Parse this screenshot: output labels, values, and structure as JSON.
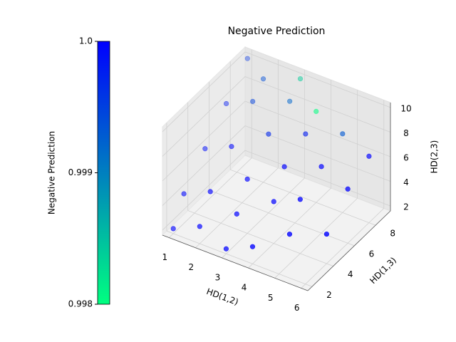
{
  "chart_data": {
    "type": "scatter3d",
    "title": "Negative Prediction",
    "xlabel": "HD(1,2)",
    "ylabel": "HD(1,3)",
    "zlabel": "HD(2,3)",
    "x": [
      1,
      1,
      1,
      1,
      1,
      2,
      2,
      2,
      2,
      2,
      3,
      3,
      3,
      3,
      3,
      3,
      4,
      4,
      4,
      4,
      4,
      5,
      5,
      5,
      5,
      6,
      6,
      6
    ],
    "y": [
      2,
      3,
      5,
      7,
      9,
      2,
      3,
      5,
      7,
      8,
      2,
      3,
      4,
      6,
      8,
      9,
      2,
      4,
      5,
      7,
      8,
      3,
      4,
      6,
      8,
      4,
      6,
      8
    ],
    "z": [
      2,
      4,
      6,
      8,
      10,
      3,
      5,
      7,
      9,
      10,
      2,
      4,
      6,
      8,
      9,
      10,
      3,
      5,
      7,
      8,
      9,
      4,
      6,
      7,
      8,
      4,
      6,
      7
    ],
    "c": [
      1.0,
      0.99995,
      0.9999,
      0.9998,
      0.9996,
      1.0,
      1.0,
      0.99995,
      0.9995,
      0.9994,
      1.0,
      1.0,
      1.0,
      0.9997,
      0.9992,
      0.9984,
      1.0,
      1.0,
      1.0,
      0.9998,
      0.998,
      1.0,
      1.0,
      1.0,
      0.9993,
      1.0,
      1.0,
      1.0
    ],
    "xlim": [
      0.75,
      6.25
    ],
    "ylim": [
      1.6,
      9.4
    ],
    "zlim": [
      1.6,
      10.4
    ],
    "xticks": [
      1,
      2,
      3,
      4,
      5,
      6
    ],
    "yticks": [
      2,
      4,
      6,
      8
    ],
    "zticks": [
      2,
      4,
      6,
      8,
      10
    ],
    "colorbar": {
      "label": "Negative Prediction",
      "clim": [
        0.998,
        1.0
      ],
      "ticks": [
        0.998,
        0.999,
        {
          "value": 1.0,
          "label": "1.0"
        }
      ],
      "colors": [
        "#00ff80",
        "#0000ff"
      ]
    },
    "grid": true
  }
}
